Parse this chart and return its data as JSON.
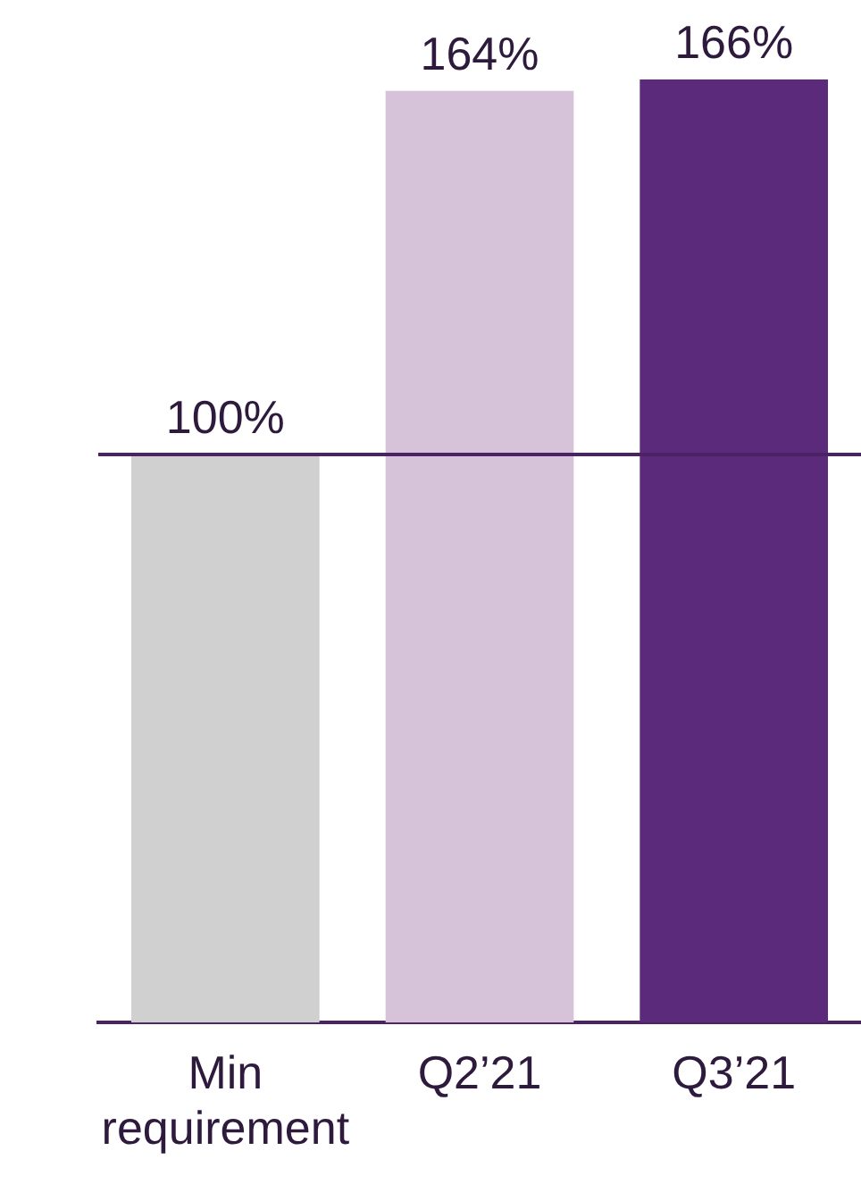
{
  "chart_data": {
    "type": "bar",
    "categories": [
      "Min requirement",
      "Q2’21",
      "Q3’21"
    ],
    "values": [
      100,
      164,
      166
    ],
    "colors": [
      "#d0d0d0",
      "#d6c3da",
      "#5b2a7b"
    ],
    "value_labels": [
      "100%",
      "164%",
      "166%"
    ],
    "ref_lines": [
      {
        "axis": "y",
        "value": 100,
        "color": "#4b2264"
      }
    ]
  }
}
